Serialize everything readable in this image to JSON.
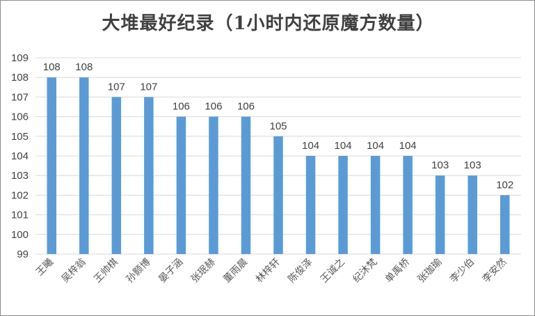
{
  "chart_data": {
    "type": "bar",
    "title": "大堆最好纪录（1小时内还原魔方数量）",
    "categories": [
      "王曦",
      "吴梓翁",
      "王帅棋",
      "孙颢博",
      "晏子涵",
      "张珉赫",
      "董雨晨",
      "林梓轩",
      "陈俊泽",
      "王诚之",
      "纪沐梵",
      "单禹桥",
      "张珈瑜",
      "李少伯",
      "李安然"
    ],
    "values": [
      108,
      108,
      107,
      107,
      106,
      106,
      106,
      105,
      104,
      104,
      104,
      104,
      103,
      103,
      102
    ],
    "ylim": [
      99,
      109
    ],
    "yticks": [
      99,
      100,
      101,
      102,
      103,
      104,
      105,
      106,
      107,
      108,
      109
    ],
    "grid": true,
    "bar_color": "#5b9bd5",
    "data_labels": true
  }
}
